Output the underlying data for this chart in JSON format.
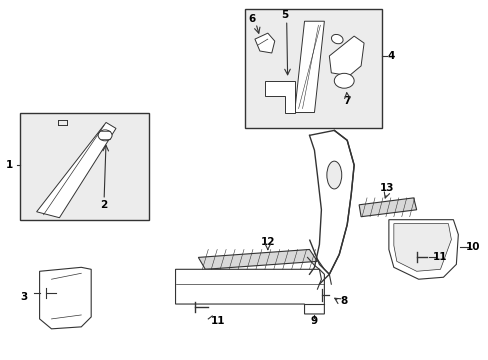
{
  "background_color": "#ffffff",
  "figure_width": 4.89,
  "figure_height": 3.6,
  "dpi": 100,
  "line_color": "#333333",
  "label_fontsize": 7.5
}
